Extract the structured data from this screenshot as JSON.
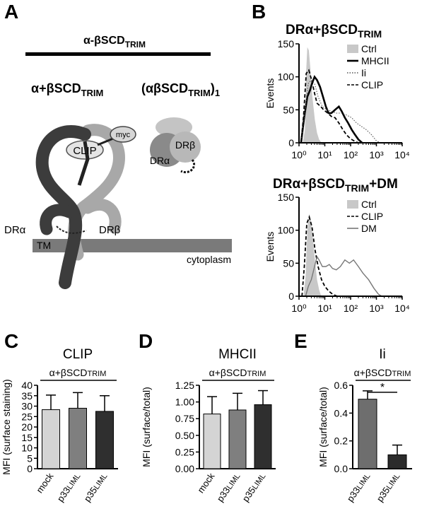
{
  "panel_letters": {
    "a": "A",
    "b": "B",
    "c": "C",
    "d": "D",
    "e": "E"
  },
  "panel_a": {
    "construct_title": "α-βSCD",
    "construct_title_sub": "TRIM",
    "left_construct": "α+βSCD",
    "left_construct_sub": "TRIM",
    "right_construct": "(αβSCD",
    "right_construct_sub": "TRIM",
    "right_construct_suffix": ")",
    "right_construct_index": "1",
    "labels": {
      "myc": "myc",
      "clip": "CLIP",
      "dra": "DRα",
      "drb": "DRβ",
      "tm": "TM",
      "cytoplasm": "cytoplasm",
      "dra_small": "DRα",
      "drb_small": "DRβ"
    }
  },
  "panel_b": {
    "top_title": "DRα+βSCD",
    "top_title_sub": "TRIM",
    "bottom_title": "DRα+βSCD",
    "bottom_title_sub": "TRIM",
    "bottom_title_suffix": "+DM",
    "y_label": "Events",
    "top_legend": [
      "Ctrl",
      "MHCII",
      "Ii",
      "CLIP"
    ],
    "bottom_legend": [
      "Ctrl",
      "CLIP",
      "DM"
    ]
  },
  "colors": {
    "light_bar": "#d4d4d4",
    "mid_bar": "#7f7f7f",
    "dark_bar": "#2f2f2f",
    "gray_bar": "#6e6e6e",
    "dark_bar2": "#2b2b2b",
    "ctrl_fill": "#c8c8c8",
    "trm_band": "#7a7a7a"
  },
  "chart_data": [
    {
      "type": "area",
      "panel": "B-top",
      "x_scale": "log",
      "xlim": [
        1,
        10000
      ],
      "ylim": [
        0,
        150
      ],
      "x_ticks": [
        "10⁰",
        "10¹",
        "10²",
        "10³",
        "10⁴"
      ],
      "y_ticks": [
        "0",
        "50",
        "100",
        "150"
      ],
      "ylabel": "Events",
      "series": [
        {
          "name": "Ctrl",
          "style": "filled",
          "points": [
            [
              1.4,
              0
            ],
            [
              1.7,
              20
            ],
            [
              1.9,
              110
            ],
            [
              2.1,
              145
            ],
            [
              2.4,
              140
            ],
            [
              2.8,
              110
            ],
            [
              3.3,
              70
            ],
            [
              4.1,
              35
            ],
            [
              5,
              15
            ],
            [
              6,
              5
            ],
            [
              7.5,
              0
            ]
          ]
        },
        {
          "name": "MHCII",
          "style": "thick",
          "points": [
            [
              1.2,
              0
            ],
            [
              1.6,
              40
            ],
            [
              2.1,
              70
            ],
            [
              2.7,
              80
            ],
            [
              3.2,
              90
            ],
            [
              4,
              100
            ],
            [
              5,
              95
            ],
            [
              6.5,
              85
            ],
            [
              8.5,
              70
            ],
            [
              11,
              55
            ],
            [
              14,
              45
            ],
            [
              18,
              45
            ],
            [
              25,
              50
            ],
            [
              35,
              55
            ],
            [
              45,
              48
            ],
            [
              60,
              38
            ],
            [
              80,
              30
            ],
            [
              110,
              20
            ],
            [
              150,
              12
            ],
            [
              200,
              5
            ],
            [
              280,
              0
            ]
          ]
        },
        {
          "name": "Ii",
          "style": "dotted",
          "points": [
            [
              1.2,
              0
            ],
            [
              1.7,
              50
            ],
            [
              2.3,
              90
            ],
            [
              3,
              95
            ],
            [
              4,
              90
            ],
            [
              5.5,
              70
            ],
            [
              8,
              55
            ],
            [
              12,
              50
            ],
            [
              18,
              48
            ],
            [
              28,
              45
            ],
            [
              45,
              45
            ],
            [
              70,
              42
            ],
            [
              110,
              38
            ],
            [
              170,
              30
            ],
            [
              260,
              25
            ],
            [
              400,
              20
            ],
            [
              650,
              12
            ],
            [
              1000,
              3
            ],
            [
              1500,
              0
            ]
          ]
        },
        {
          "name": "CLIP",
          "style": "dashed",
          "points": [
            [
              1.2,
              0
            ],
            [
              1.5,
              40
            ],
            [
              1.9,
              105
            ],
            [
              2.4,
              110
            ],
            [
              3.1,
              95
            ],
            [
              4,
              75
            ],
            [
              5,
              60
            ],
            [
              7,
              55
            ],
            [
              9,
              50
            ],
            [
              13,
              45
            ],
            [
              18,
              40
            ],
            [
              25,
              38
            ],
            [
              35,
              30
            ],
            [
              50,
              20
            ],
            [
              70,
              12
            ],
            [
              100,
              6
            ],
            [
              150,
              2
            ],
            [
              200,
              0
            ]
          ]
        }
      ]
    },
    {
      "type": "area",
      "panel": "B-bottom",
      "x_scale": "log",
      "xlim": [
        1,
        10000
      ],
      "ylim": [
        0,
        150
      ],
      "x_ticks": [
        "10⁰",
        "10¹",
        "10²",
        "10³",
        "10⁴"
      ],
      "y_ticks": [
        "0",
        "50",
        "100",
        "150"
      ],
      "ylabel": "Events",
      "series": [
        {
          "name": "Ctrl",
          "style": "filled",
          "points": [
            [
              1.5,
              0
            ],
            [
              1.8,
              30
            ],
            [
              2.1,
              100
            ],
            [
              2.5,
              125
            ],
            [
              2.9,
              115
            ],
            [
              3.4,
              90
            ],
            [
              4,
              60
            ],
            [
              5,
              25
            ],
            [
              6,
              10
            ],
            [
              7,
              2
            ],
            [
              8,
              0
            ]
          ]
        },
        {
          "name": "CLIP",
          "style": "dashed",
          "points": [
            [
              1.3,
              0
            ],
            [
              1.6,
              45
            ],
            [
              2,
              110
            ],
            [
              2.5,
              120
            ],
            [
              3.2,
              105
            ],
            [
              4.2,
              70
            ],
            [
              5.5,
              45
            ],
            [
              7.5,
              25
            ],
            [
              10,
              15
            ],
            [
              14,
              8
            ],
            [
              20,
              3
            ],
            [
              30,
              0
            ]
          ]
        },
        {
          "name": "DM",
          "style": "solid-gray",
          "points": [
            [
              1.8,
              0
            ],
            [
              2.3,
              15
            ],
            [
              3,
              25
            ],
            [
              4,
              45
            ],
            [
              5,
              60
            ],
            [
              6,
              55
            ],
            [
              8,
              45
            ],
            [
              11,
              45
            ],
            [
              15,
              48
            ],
            [
              20,
              42
            ],
            [
              28,
              40
            ],
            [
              40,
              45
            ],
            [
              60,
              55
            ],
            [
              90,
              50
            ],
            [
              130,
              55
            ],
            [
              200,
              45
            ],
            [
              300,
              35
            ],
            [
              500,
              25
            ],
            [
              800,
              12
            ],
            [
              1200,
              3
            ],
            [
              1600,
              0
            ]
          ]
        }
      ]
    },
    {
      "type": "bar",
      "panel": "C",
      "title": "CLIP",
      "group_label": "α+βSCDTRIM",
      "ylabel": "MFI (surface staining)",
      "ylim": [
        0,
        40
      ],
      "y_ticks": [
        "0",
        "5",
        "10",
        "15",
        "20",
        "25",
        "30",
        "35",
        "40"
      ],
      "categories": [
        "mock",
        "p33LIML",
        "p35LIML"
      ],
      "values": [
        28.3,
        29,
        27.5
      ],
      "errors": [
        7,
        7.5,
        7.5
      ]
    },
    {
      "type": "bar",
      "panel": "D",
      "title": "MHCII",
      "group_label": "α+βSCDTRIM",
      "ylabel": "MFI (surface/total)",
      "ylim": [
        0,
        1.25
      ],
      "y_ticks": [
        "0.00",
        "0.25",
        "0.50",
        "0.75",
        "1.00",
        "1.25"
      ],
      "categories": [
        "mock",
        "p33LIML",
        "p35LIML"
      ],
      "values": [
        0.82,
        0.88,
        0.96
      ],
      "errors": [
        0.26,
        0.25,
        0.21
      ]
    },
    {
      "type": "bar",
      "panel": "E",
      "title": "Ii",
      "group_label": "α+βSCDTRIM",
      "significance": "*",
      "ylabel": "MFI (surface/total)",
      "ylim": [
        0,
        0.6
      ],
      "y_ticks": [
        "0.0",
        "0.2",
        "0.4",
        "0.6"
      ],
      "categories": [
        "p33LIML",
        "p35LIML"
      ],
      "values": [
        0.5,
        0.1
      ],
      "errors": [
        0.06,
        0.07
      ]
    }
  ]
}
